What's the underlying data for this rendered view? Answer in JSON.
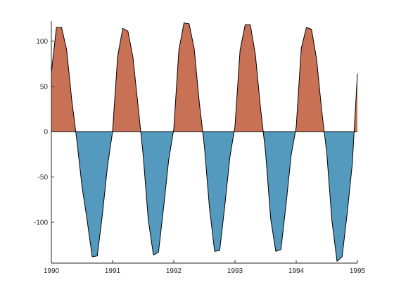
{
  "chart_data": {
    "type": "area",
    "title": "",
    "xlabel": "",
    "ylabel": "",
    "xlim": [
      1990,
      1995
    ],
    "ylim": [
      -145,
      122
    ],
    "x_ticks": [
      {
        "value": 1990,
        "label": "1990"
      },
      {
        "value": 1991,
        "label": "1991"
      },
      {
        "value": 1992,
        "label": "1992"
      },
      {
        "value": 1993,
        "label": "1993"
      },
      {
        "value": 1994,
        "label": "1994"
      },
      {
        "value": 1995,
        "label": "1995"
      }
    ],
    "y_ticks": [
      {
        "value": 100,
        "label": "100"
      },
      {
        "value": 50,
        "label": "50"
      },
      {
        "value": 0,
        "label": "0"
      },
      {
        "value": -50,
        "label": "-50"
      },
      {
        "value": -100,
        "label": "-100"
      }
    ],
    "grid": false,
    "baseline": 0,
    "colors": {
      "positive_fill": "#c87155",
      "negative_fill": "#5499be",
      "line": "#000000",
      "axis": "#262626"
    },
    "series": [
      {
        "x": [
          1990.0,
          1990.083,
          1990.167,
          1990.25,
          1990.333,
          1990.417,
          1990.5,
          1990.583,
          1990.667,
          1990.75,
          1990.833,
          1990.917,
          1991.0,
          1991.083,
          1991.167,
          1991.25,
          1991.333,
          1991.417,
          1991.5,
          1991.583,
          1991.667,
          1991.75,
          1991.833,
          1991.917,
          1992.0,
          1992.083,
          1992.167,
          1992.25,
          1992.333,
          1992.417,
          1992.5,
          1992.583,
          1992.667,
          1992.75,
          1992.833,
          1992.917,
          1993.0,
          1993.083,
          1993.167,
          1993.25,
          1993.333,
          1993.417,
          1993.5,
          1993.583,
          1993.667,
          1993.75,
          1993.833,
          1993.917,
          1994.0,
          1994.083,
          1994.167,
          1994.25,
          1994.333,
          1994.417,
          1994.5,
          1994.583,
          1994.667,
          1994.75,
          1994.833,
          1994.917,
          1995.0
        ],
        "y": [
          65,
          115,
          115,
          90,
          35,
          -10,
          -60,
          -97,
          -138,
          -137,
          -92,
          -38,
          0,
          83,
          114,
          111,
          82,
          28,
          -26,
          -97,
          -136,
          -133,
          -84,
          -31,
          3,
          90,
          120,
          119,
          92,
          32,
          -16,
          -84,
          -132,
          -131,
          -82,
          -28,
          6,
          90,
          118,
          118,
          85,
          26,
          -23,
          -96,
          -132,
          -130,
          -81,
          -26,
          5,
          92,
          115,
          113,
          80,
          23,
          -24,
          -98,
          -143,
          -138,
          -90,
          -35,
          64
        ]
      }
    ]
  }
}
